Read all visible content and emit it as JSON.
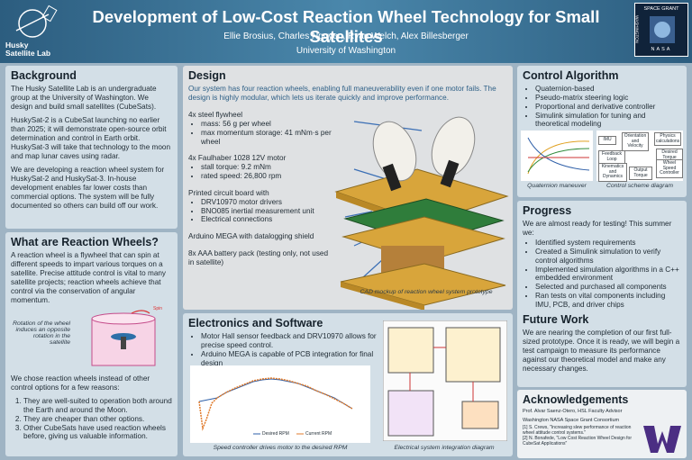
{
  "header": {
    "title": "Development of Low-Cost Reaction Wheel Technology for Small Satellites",
    "authors": "Ellie Brosius, Charles Nguyen, Ryan Welch, Alex Billesberger",
    "affiliation": "University of Washington",
    "lab_name": "Husky Satellite Lab",
    "partner_logo": [
      "SPACE GRANT",
      "WASHINGTON",
      "NASA"
    ]
  },
  "background": {
    "heading": "Background",
    "paragraphs": [
      "The Husky Satellite Lab is an undergraduate group at the University of Washington. We design and build small satellites (CubeSats).",
      "HuskySat-2 is a CubeSat launching no earlier than 2025; it will demonstrate open-source orbit determination and control in Earth orbit. HuskySat-3 will take that technology to the moon and map lunar caves using radar.",
      "We are developing a reaction wheel system for HuskySat-2 and HuskySat-3. In-house development enables far lower costs than commercial options. The system will be fully documented so others can build off our work."
    ]
  },
  "reaction_wheels": {
    "heading": "What are Reaction Wheels?",
    "intro": "A reaction wheel is a flywheel that can spin at different speeds to impart various torques on a satellite. Precise attitude control is vital to many satellite projects; reaction wheels achieve that control via the conservation of angular momentum.",
    "figure_label": "Spin",
    "figure_caption": "Rotation of the wheel induces an opposite rotation in the satellite",
    "reasons_intro": "We chose reaction wheels instead of other control options for a few reasons:",
    "reasons": [
      "They are well-suited to operation both around the Earth and around the Moon.",
      "They are cheaper than other options.",
      "Other CubeSats have used reaction wheels before, giving us valuable information."
    ]
  },
  "design": {
    "heading": "Design",
    "intro": "Our system has four reaction wheels, enabling full maneuverability even if one motor fails. The design is highly modular, which lets us iterate quickly and improve performance.",
    "groups": [
      {
        "title": "4x steel flywheel",
        "items": [
          "mass: 56 g per wheel",
          "max momentum storage: 41 mNm·s per wheel"
        ]
      },
      {
        "title": "4x Faulhaber 1028 12V motor",
        "items": [
          "stall torque: 9.2 mNm",
          "rated speed: 26,800 rpm"
        ]
      },
      {
        "title": "Printed circuit board with",
        "items": [
          "DRV10970 motor drivers",
          "BNO085 inertial measurement unit",
          "Electrical connections"
        ]
      },
      {
        "title": "Arduino MEGA with datalogging shield",
        "items": []
      },
      {
        "title": "8x AAA battery pack (testing only, not used in satellite)",
        "items": []
      }
    ],
    "caption": "CAD mockup of reaction wheel system prototype"
  },
  "electronics": {
    "heading": "Electronics and Software",
    "bullets": [
      "Motor Hall sensor feedback and DRV10970 allows for precise speed control.",
      "Arduino MEGA is capable of PCB integration for final design"
    ],
    "legend": [
      "Desired RPM",
      "Current RPM"
    ],
    "chart_caption": "Speed controller drives motor to the desired RPM",
    "diagram_caption": "Electrical system integration diagram"
  },
  "control": {
    "heading": "Control Algorithm",
    "bullets": [
      "Quaternion-based",
      "Pseudo-matrix steering logic",
      "Proportional and derivative controller",
      "Simulink simulation for tuning and theoretical modeling"
    ],
    "diagram_labels": [
      "IMU",
      "Orientation and Velocity",
      "Physics calculations",
      "Feedback Loop",
      "Desired Torque",
      "Kinematics and Dynamics",
      "Output Torque",
      "Wheel Speed Controller"
    ],
    "captions": [
      "Quaternion maneuver",
      "Control scheme diagram"
    ]
  },
  "progress": {
    "heading": "Progress",
    "intro": "We are almost ready for testing! This summer we:",
    "items": [
      "Identified system requirements",
      "Created a Simulink simulation to verify control algorithms",
      "Implemented simulation algorithms in a C++ embedded environment",
      "Selected and purchased all components",
      "Ran tests on vital components including IMU, PCB, and driver chips"
    ]
  },
  "future": {
    "heading": "Future Work",
    "text": "We are nearing the completion of our first full-sized prototype. Once it is ready, we will begin a test campaign to measure its performance against our theoretical model and make any necessary changes."
  },
  "acknowledgements": {
    "heading": "Acknowledgements",
    "people": [
      "Prof. Alvar Saenz-Otero, HSL Faculty Advisor",
      "Washington NASA Space Grant Consortium"
    ],
    "references": [
      "[1] S. Crews, \"Increasing slew performance of reaction wheel attitude control systems.\"",
      "[2] N. Bonafede, \"Low Cost Reaction Wheel Design for CubeSat Applications\""
    ]
  }
}
